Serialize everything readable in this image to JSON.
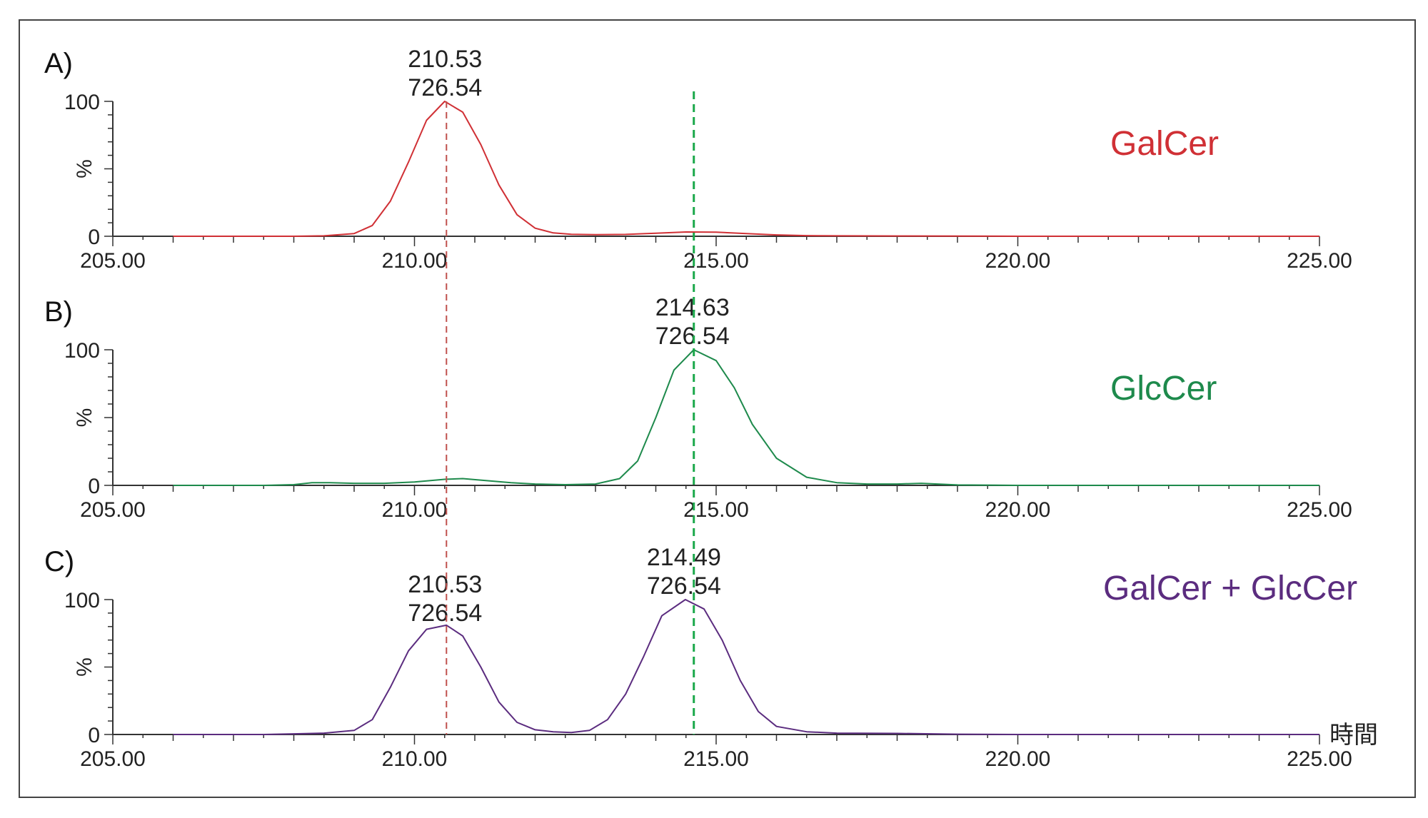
{
  "colors": {
    "galcer": "#d03035",
    "glccer": "#1e8a4c",
    "mix": "#5b2c7f",
    "galcer_ref_line": "#c0504d",
    "glccer_ref_line": "#1aa84a",
    "axis": "#333333",
    "frame": "#444444"
  },
  "chart_data": [
    {
      "type": "line",
      "panel_label": "A)",
      "series_name": "GalCer",
      "color_key": "galcer",
      "xlim": [
        205,
        225
      ],
      "ylim": [
        0,
        100
      ],
      "ylabel": "%",
      "y_ticks": [
        "0",
        "100"
      ],
      "x_ticks": [
        "205.00",
        "210.00",
        "215.00",
        "220.00",
        "225.00"
      ],
      "x_tick_values": [
        205,
        210,
        215,
        220,
        225
      ],
      "peaks": [
        {
          "x": 210.53,
          "time_label": "210.53",
          "mz_label": "726.54",
          "height": 100,
          "sigma": 0.55
        }
      ],
      "minor_bumps": [
        {
          "x": 214.6,
          "height": 3,
          "sigma": 0.6
        },
        {
          "x": 212.6,
          "height": 1.5,
          "sigma": 0.6
        }
      ],
      "x": [
        206.0,
        206.5,
        207.0,
        207.5,
        208.0,
        208.5,
        209.0,
        209.3,
        209.6,
        209.9,
        210.2,
        210.5,
        210.8,
        211.1,
        211.4,
        211.7,
        212.0,
        212.3,
        212.6,
        213.0,
        213.5,
        214.0,
        214.5,
        215.0,
        215.5,
        216.0,
        216.5,
        217.0,
        218.0,
        219.0,
        220.0,
        221.0,
        222.0,
        223.0,
        224.0,
        225.0
      ],
      "y": [
        0,
        0,
        0,
        0,
        0,
        0.3,
        2,
        8,
        26,
        55,
        86,
        100,
        92,
        68,
        38,
        16,
        6,
        2.5,
        1.5,
        1.2,
        1.4,
        2.2,
        3.2,
        3,
        2,
        1,
        0.5,
        0.3,
        0.2,
        0.1,
        0,
        0,
        0,
        0,
        0,
        0
      ]
    },
    {
      "type": "line",
      "panel_label": "B)",
      "series_name": "GlcCer",
      "color_key": "glccer",
      "xlim": [
        205,
        225
      ],
      "ylim": [
        0,
        100
      ],
      "ylabel": "%",
      "y_ticks": [
        "0",
        "100"
      ],
      "x_ticks": [
        "205.00",
        "210.00",
        "215.00",
        "220.00",
        "225.00"
      ],
      "x_tick_values": [
        205,
        210,
        215,
        220,
        225
      ],
      "peaks": [
        {
          "x": 214.63,
          "time_label": "214.63",
          "mz_label": "726.54",
          "height": 100,
          "sigma": 0.6
        }
      ],
      "x": [
        206.0,
        206.5,
        207.0,
        207.5,
        208.0,
        208.3,
        208.6,
        209.0,
        209.5,
        210.0,
        210.5,
        210.8,
        211.2,
        211.6,
        212.0,
        212.5,
        213.0,
        213.4,
        213.7,
        214.0,
        214.3,
        214.63,
        215.0,
        215.3,
        215.6,
        216.0,
        216.5,
        217.0,
        217.5,
        218.0,
        218.4,
        219.0,
        220.0,
        221.0,
        222.0,
        223.0,
        224.0,
        225.0
      ],
      "y": [
        0,
        0,
        0,
        0,
        0.5,
        2,
        2,
        1.5,
        1.5,
        2.5,
        4.5,
        5,
        3.5,
        2,
        1,
        0.5,
        1,
        5,
        18,
        50,
        85,
        100,
        92,
        72,
        45,
        20,
        6,
        2,
        1,
        1,
        1.5,
        0.3,
        0,
        0,
        0,
        0,
        0,
        0
      ]
    },
    {
      "type": "line",
      "panel_label": "C)",
      "series_name": "GalCer + GlcCer",
      "color_key": "mix",
      "xlim": [
        205,
        225
      ],
      "ylim": [
        0,
        100
      ],
      "ylabel": "%",
      "y_ticks": [
        "0",
        "100"
      ],
      "x_ticks": [
        "205.00",
        "210.00",
        "215.00",
        "220.00",
        "225.00"
      ],
      "x_tick_values": [
        205,
        210,
        215,
        220,
        225
      ],
      "x_unit": "時間",
      "peaks": [
        {
          "x": 210.53,
          "time_label": "210.53",
          "mz_label": "726.54",
          "height": 80,
          "sigma": 0.55
        },
        {
          "x": 214.49,
          "time_label": "214.49",
          "mz_label": "726.54",
          "height": 100,
          "sigma": 0.6
        }
      ],
      "x": [
        206.0,
        206.5,
        207.0,
        207.5,
        208.0,
        208.5,
        209.0,
        209.3,
        209.6,
        209.9,
        210.2,
        210.53,
        210.8,
        211.1,
        211.4,
        211.7,
        212.0,
        212.3,
        212.6,
        212.9,
        213.2,
        213.5,
        213.8,
        214.1,
        214.49,
        214.8,
        215.1,
        215.4,
        215.7,
        216.0,
        216.5,
        217.0,
        218.0,
        219.0,
        220.0,
        221.0,
        222.0,
        223.0,
        224.0,
        225.0
      ],
      "y": [
        0,
        0,
        0,
        0,
        0.5,
        1,
        3,
        11,
        35,
        62,
        78,
        81,
        73,
        50,
        24,
        9,
        3.5,
        2,
        1.5,
        3,
        11,
        30,
        58,
        88,
        100,
        93,
        70,
        40,
        17,
        6,
        2,
        1,
        0.8,
        0.2,
        0,
        0,
        0,
        0,
        0,
        0
      ]
    }
  ]
}
